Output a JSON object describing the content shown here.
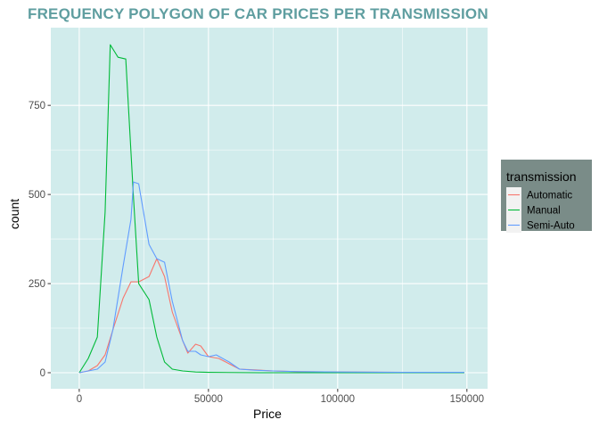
{
  "chart_data": {
    "type": "line",
    "title": "FREQUENCY POLYGON OF CAR PRICES PER TRANSMISSION",
    "xlabel": "Price",
    "ylabel": "count",
    "xlim": [
      -11000,
      158000
    ],
    "ylim": [
      -45,
      968
    ],
    "xticks": [
      0,
      50000,
      100000,
      150000
    ],
    "xtick_labels": [
      "0",
      "50000",
      "100000",
      "150000"
    ],
    "yticks": [
      0,
      250,
      500,
      750
    ],
    "ytick_labels": [
      "0",
      "250",
      "500",
      "750"
    ],
    "grid": true,
    "legend_title": "transmission",
    "legend_position": "right",
    "colors": {
      "panel": "#d1ecec",
      "grid": "#ffffff",
      "legend_bg": "#7a8c88",
      "legend_key_bg": "#f2f2f2",
      "title": "#5f9ea0"
    },
    "series": [
      {
        "name": "Automatic",
        "color": "#f8766d",
        "points": [
          [
            0,
            0
          ],
          [
            3500,
            5
          ],
          [
            7000,
            20
          ],
          [
            10000,
            50
          ],
          [
            13000,
            120
          ],
          [
            17000,
            210
          ],
          [
            20000,
            255
          ],
          [
            23000,
            255
          ],
          [
            27000,
            270
          ],
          [
            30000,
            320
          ],
          [
            33000,
            270
          ],
          [
            36000,
            170
          ],
          [
            40000,
            90
          ],
          [
            42000,
            55
          ],
          [
            45000,
            80
          ],
          [
            47000,
            75
          ],
          [
            50000,
            45
          ],
          [
            54000,
            40
          ],
          [
            58000,
            25
          ],
          [
            62000,
            10
          ],
          [
            68000,
            8
          ],
          [
            75000,
            5
          ],
          [
            85000,
            3
          ],
          [
            100000,
            2
          ],
          [
            125000,
            1
          ],
          [
            149000,
            1
          ]
        ]
      },
      {
        "name": "Manual",
        "color": "#00ba38",
        "points": [
          [
            0,
            0
          ],
          [
            3500,
            40
          ],
          [
            7000,
            100
          ],
          [
            10000,
            450
          ],
          [
            12000,
            920
          ],
          [
            15000,
            885
          ],
          [
            18000,
            880
          ],
          [
            21000,
            490
          ],
          [
            23000,
            250
          ],
          [
            27000,
            205
          ],
          [
            30000,
            100
          ],
          [
            33000,
            30
          ],
          [
            36000,
            10
          ],
          [
            40000,
            5
          ],
          [
            45000,
            2
          ],
          [
            50000,
            1
          ],
          [
            70000,
            0
          ],
          [
            149000,
            0
          ]
        ]
      },
      {
        "name": "Semi-Auto",
        "color": "#619cff",
        "points": [
          [
            0,
            0
          ],
          [
            3500,
            5
          ],
          [
            7000,
            10
          ],
          [
            10000,
            30
          ],
          [
            13000,
            120
          ],
          [
            17000,
            300
          ],
          [
            20000,
            430
          ],
          [
            21000,
            535
          ],
          [
            23000,
            530
          ],
          [
            27000,
            360
          ],
          [
            30000,
            320
          ],
          [
            33000,
            310
          ],
          [
            36000,
            200
          ],
          [
            40000,
            90
          ],
          [
            42000,
            60
          ],
          [
            45000,
            60
          ],
          [
            47000,
            50
          ],
          [
            50000,
            45
          ],
          [
            53000,
            50
          ],
          [
            58000,
            30
          ],
          [
            62000,
            10
          ],
          [
            68000,
            7
          ],
          [
            75000,
            5
          ],
          [
            85000,
            3
          ],
          [
            100000,
            2
          ],
          [
            125000,
            1
          ],
          [
            149000,
            1
          ]
        ]
      }
    ]
  }
}
